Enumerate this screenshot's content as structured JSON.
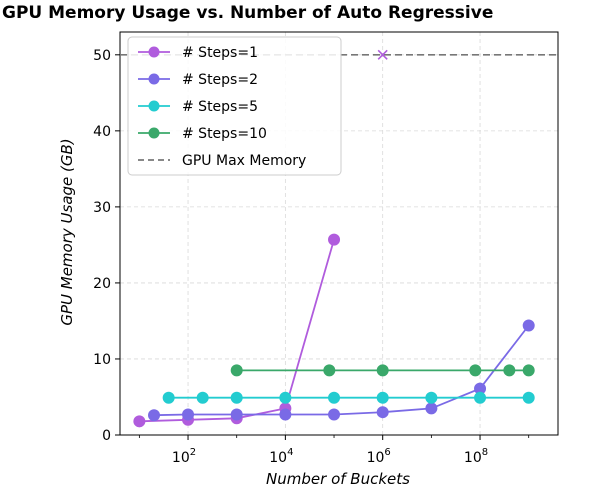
{
  "chart_data": {
    "type": "line",
    "title": "GPU Memory Usage vs. Number of Auto Regressive",
    "xlabel": "Number of Buckets",
    "ylabel": "GPU Memory Usage (GB)",
    "x_scale": "log",
    "xlim": [
      4,
      4000000000
    ],
    "ylim": [
      0,
      53
    ],
    "x_ticks": [
      {
        "value": 100,
        "base": "10",
        "exp": "2"
      },
      {
        "value": 10000,
        "base": "10",
        "exp": "4"
      },
      {
        "value": 1000000,
        "base": "10",
        "exp": "6"
      },
      {
        "value": 100000000,
        "base": "10",
        "exp": "8"
      }
    ],
    "y_ticks": [
      0,
      10,
      20,
      30,
      40,
      50
    ],
    "grid": true,
    "legend_position": "upper-left",
    "series": [
      {
        "name": "# Steps=1",
        "color": "#b05cdd",
        "x": [
          10,
          100,
          1000,
          10000,
          100000
        ],
        "y": [
          1.8,
          2.0,
          2.2,
          3.5,
          25.7
        ]
      },
      {
        "name": "# Steps=2",
        "color": "#7a6ae6",
        "x": [
          20,
          100,
          1000,
          10000,
          100000,
          1000000,
          10000000,
          100000000,
          1000000000
        ],
        "y": [
          2.6,
          2.7,
          2.7,
          2.7,
          2.7,
          3.0,
          3.5,
          6.1,
          14.4
        ]
      },
      {
        "name": "# Steps=5",
        "color": "#23ccd0",
        "x": [
          40,
          200,
          1000,
          10000,
          100000,
          1000000,
          10000000,
          100000000,
          1000000000
        ],
        "y": [
          4.9,
          4.9,
          4.9,
          4.9,
          4.9,
          4.9,
          4.9,
          4.9,
          4.9
        ]
      },
      {
        "name": "# Steps=10",
        "color": "#3aa86a",
        "x": [
          1000,
          80000,
          1000000,
          80000000,
          400000000,
          1000000000
        ],
        "y": [
          8.5,
          8.5,
          8.5,
          8.5,
          8.5,
          8.5
        ]
      }
    ],
    "reference_line": {
      "name": "GPU Max Memory",
      "y": 50,
      "color": "#777777",
      "style": "dashed"
    },
    "markers": [
      {
        "series": "# Steps=1",
        "x": 1000000,
        "y": 50,
        "symbol": "x",
        "color": "#b05cdd"
      }
    ]
  }
}
